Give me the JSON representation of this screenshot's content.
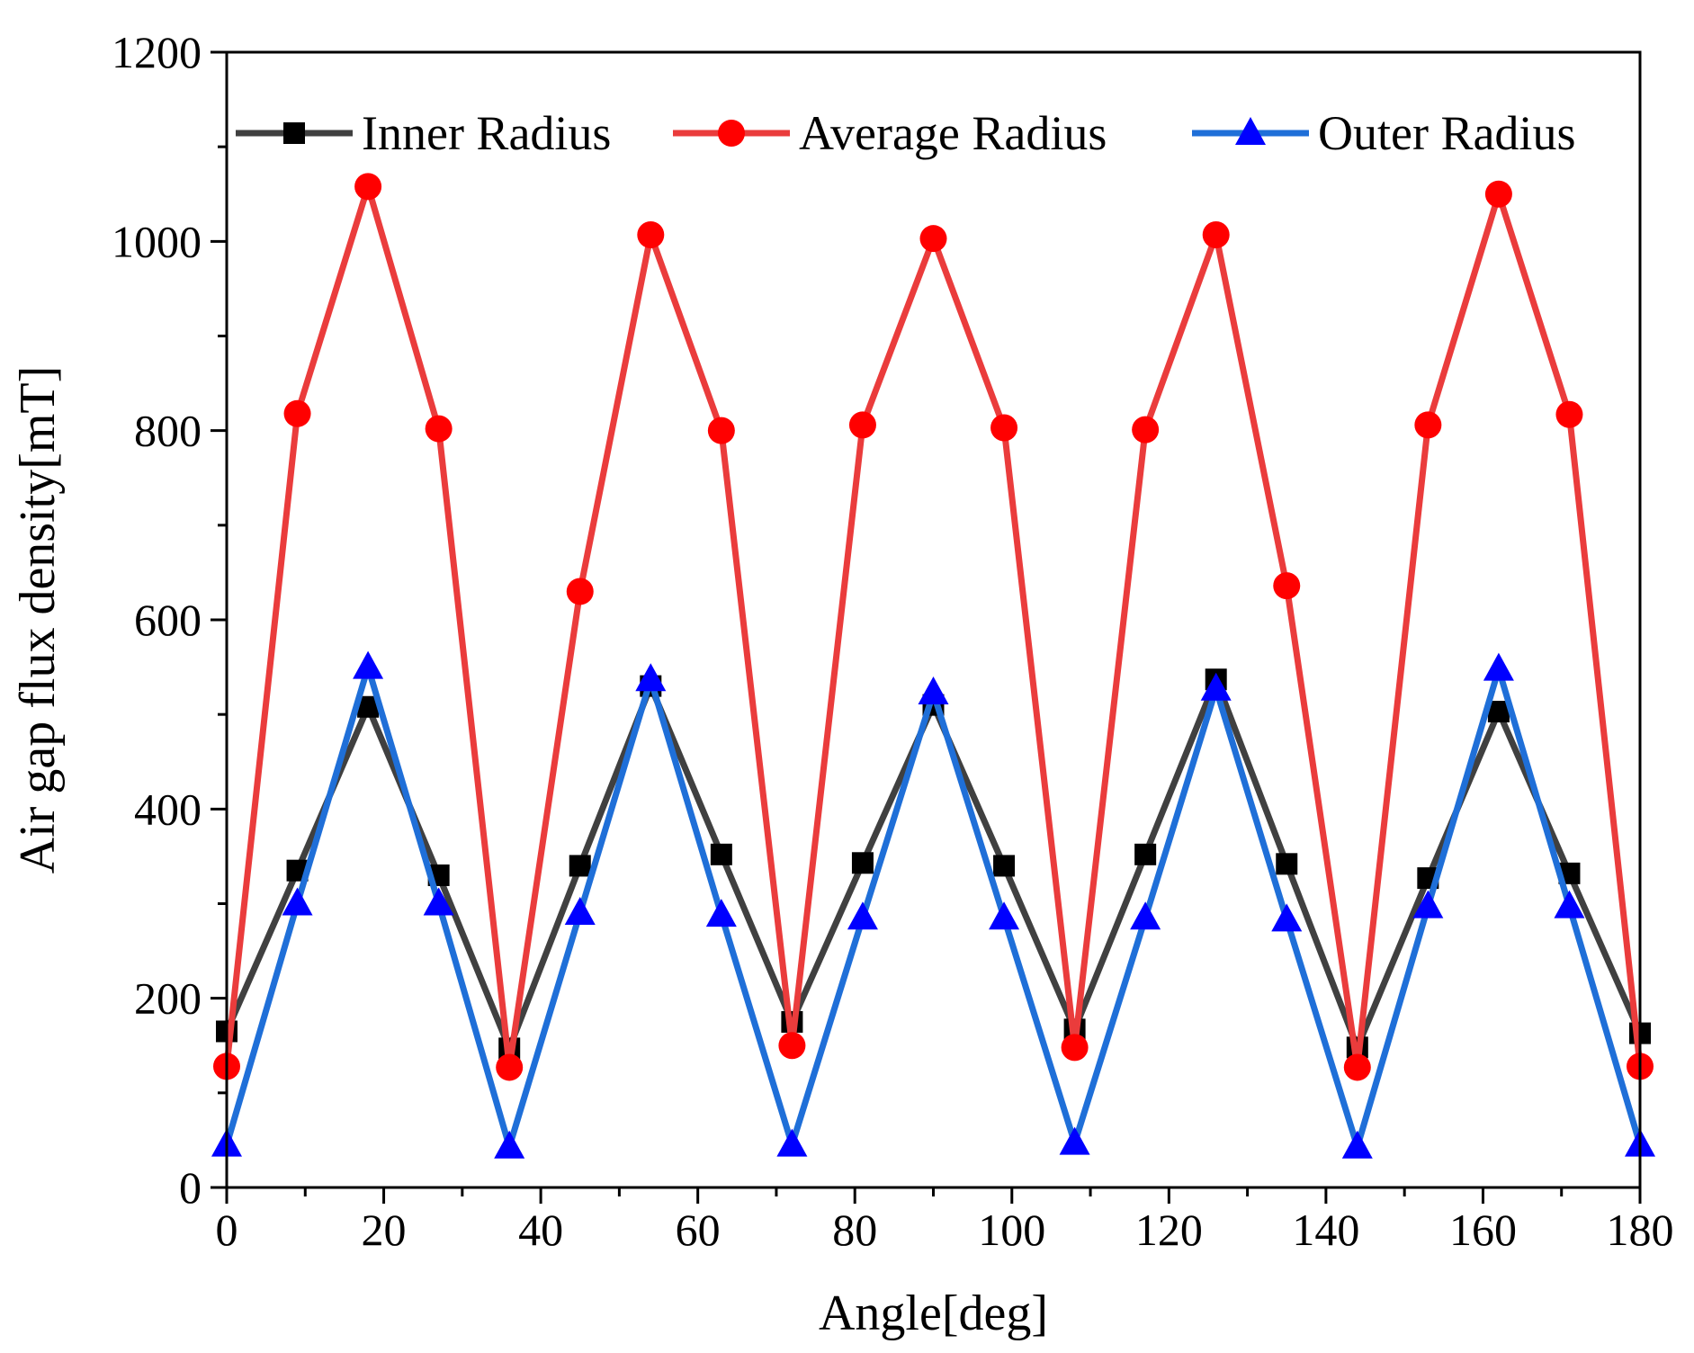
{
  "chart_data": {
    "type": "line",
    "title": "",
    "xlabel": "Angle[deg]",
    "ylabel": "Air gap flux density[mT]",
    "xlim": [
      0,
      180
    ],
    "ylim": [
      0,
      1200
    ],
    "xticks": [
      0,
      20,
      40,
      60,
      80,
      100,
      120,
      140,
      160,
      180
    ],
    "yticks": [
      0,
      200,
      400,
      600,
      800,
      1000,
      1200
    ],
    "x": [
      0,
      9,
      18,
      27,
      36,
      45,
      54,
      63,
      72,
      81,
      90,
      99,
      108,
      117,
      126,
      135,
      144,
      153,
      162,
      171,
      180
    ],
    "legend_position": "top",
    "series": [
      {
        "name": "Inner Radius",
        "color": "#404040",
        "marker_color": "#000000",
        "marker": "square",
        "values": [
          165,
          335,
          508,
          330,
          147,
          340,
          530,
          352,
          175,
          343,
          510,
          340,
          167,
          352,
          537,
          342,
          148,
          327,
          503,
          332,
          163
        ]
      },
      {
        "name": "Average Radius",
        "color": "#ea3c3c",
        "marker_color": "#ff0000",
        "marker": "circle",
        "values": [
          128,
          818,
          1058,
          802,
          127,
          630,
          1007,
          800,
          150,
          806,
          1003,
          803,
          148,
          801,
          1007,
          636,
          127,
          806,
          1050,
          817,
          128
        ]
      },
      {
        "name": "Outer Radius",
        "color": "#1f6fd8",
        "marker_color": "#0000ff",
        "marker": "triangle",
        "values": [
          45,
          300,
          550,
          300,
          43,
          290,
          537,
          288,
          45,
          285,
          523,
          285,
          47,
          285,
          527,
          283,
          43,
          297,
          548,
          297,
          45
        ]
      }
    ]
  }
}
